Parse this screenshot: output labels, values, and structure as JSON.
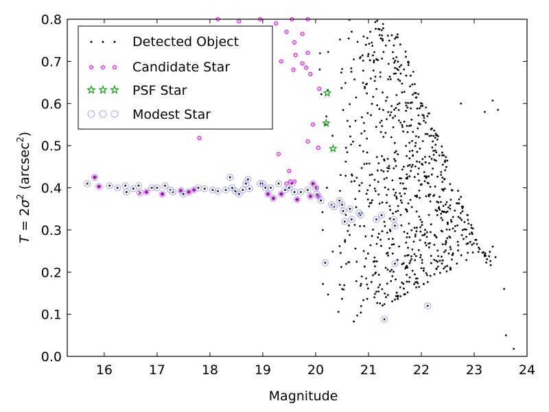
{
  "chart_data": {
    "type": "scatter",
    "xlabel": "Magnitude",
    "ylabel_parts": {
      "pre": "T",
      "eq": " = 2",
      "sigma": "σ",
      "sq": "2",
      "unit": " (arcsec",
      "unit_sq": "2",
      "close": ")"
    },
    "xlim": [
      15.3,
      24.0
    ],
    "ylim": [
      0.0,
      0.8
    ],
    "xticks": [
      "16",
      "17",
      "18",
      "19",
      "20",
      "21",
      "22",
      "23",
      "24"
    ],
    "yticks": [
      "0.0",
      "0.1",
      "0.2",
      "0.3",
      "0.4",
      "0.5",
      "0.6",
      "0.7",
      "0.8"
    ],
    "legend_position": "top-left",
    "colors": {
      "detected": "#000000",
      "candidate": "#ff00ff",
      "psf": "#00a000",
      "modest": "#aaaaff"
    },
    "series": [
      {
        "name": "Detected Object",
        "marker": "dot"
      },
      {
        "name": "Candidate Star",
        "marker": "small-magenta-circle"
      },
      {
        "name": "PSF Star",
        "marker": "green-star"
      },
      {
        "name": "Modest Star",
        "marker": "open-lavender-circle"
      }
    ],
    "psf_stars": [
      [
        20.22,
        0.625
      ],
      [
        20.2,
        0.553
      ],
      [
        20.33,
        0.493
      ]
    ],
    "candidate_stars": [
      [
        18.15,
        0.8
      ],
      [
        18.55,
        0.795
      ],
      [
        18.95,
        0.8
      ],
      [
        19.25,
        0.79
      ],
      [
        19.55,
        0.8
      ],
      [
        19.85,
        0.8
      ],
      [
        19.45,
        0.77
      ],
      [
        19.0,
        0.755
      ],
      [
        19.6,
        0.745
      ],
      [
        19.75,
        0.765
      ],
      [
        19.62,
        0.715
      ],
      [
        19.85,
        0.72
      ],
      [
        19.75,
        0.695
      ],
      [
        19.35,
        0.7
      ],
      [
        19.58,
        0.68
      ],
      [
        19.82,
        0.685
      ],
      [
        19.9,
        0.67
      ],
      [
        20.07,
        0.635
      ],
      [
        19.95,
        0.55
      ],
      [
        20.05,
        0.495
      ],
      [
        19.85,
        0.51
      ],
      [
        17.8,
        0.518
      ],
      [
        19.3,
        0.48
      ],
      [
        19.5,
        0.44
      ],
      [
        15.82,
        0.425
      ],
      [
        15.9,
        0.403
      ],
      [
        16.65,
        0.388
      ],
      [
        16.8,
        0.39
      ],
      [
        17.1,
        0.385
      ],
      [
        17.45,
        0.393
      ],
      [
        17.6,
        0.39
      ],
      [
        17.7,
        0.395
      ],
      [
        19.1,
        0.385
      ],
      [
        19.2,
        0.375
      ],
      [
        19.35,
        0.385
      ],
      [
        19.45,
        0.41
      ],
      [
        19.52,
        0.415
      ],
      [
        19.6,
        0.415
      ],
      [
        19.65,
        0.372
      ],
      [
        19.9,
        0.38
      ],
      [
        19.95,
        0.41
      ],
      [
        20.02,
        0.4
      ],
      [
        20.05,
        0.38
      ]
    ],
    "modest_stars": [
      [
        15.68,
        0.41
      ],
      [
        15.82,
        0.425
      ],
      [
        15.9,
        0.403
      ],
      [
        16.1,
        0.405
      ],
      [
        16.25,
        0.4
      ],
      [
        16.4,
        0.405
      ],
      [
        16.42,
        0.39
      ],
      [
        16.55,
        0.398
      ],
      [
        16.65,
        0.405
      ],
      [
        16.68,
        0.388
      ],
      [
        16.8,
        0.39
      ],
      [
        16.9,
        0.4
      ],
      [
        17.0,
        0.4
      ],
      [
        17.1,
        0.385
      ],
      [
        17.15,
        0.405
      ],
      [
        17.25,
        0.395
      ],
      [
        17.3,
        0.39
      ],
      [
        17.45,
        0.393
      ],
      [
        17.5,
        0.385
      ],
      [
        17.6,
        0.39
      ],
      [
        17.7,
        0.395
      ],
      [
        17.78,
        0.4
      ],
      [
        17.9,
        0.398
      ],
      [
        18.05,
        0.395
      ],
      [
        18.15,
        0.392
      ],
      [
        18.3,
        0.395
      ],
      [
        18.38,
        0.425
      ],
      [
        18.42,
        0.4
      ],
      [
        18.48,
        0.392
      ],
      [
        18.55,
        0.385
      ],
      [
        18.62,
        0.395
      ],
      [
        18.68,
        0.41
      ],
      [
        18.72,
        0.42
      ],
      [
        18.75,
        0.398
      ],
      [
        18.95,
        0.41
      ],
      [
        19.0,
        0.41
      ],
      [
        19.05,
        0.4
      ],
      [
        19.1,
        0.385
      ],
      [
        19.15,
        0.4
      ],
      [
        19.2,
        0.375
      ],
      [
        19.3,
        0.41
      ],
      [
        19.35,
        0.385
      ],
      [
        19.42,
        0.395
      ],
      [
        19.5,
        0.4
      ],
      [
        19.55,
        0.41
      ],
      [
        19.6,
        0.39
      ],
      [
        19.65,
        0.372
      ],
      [
        19.72,
        0.39
      ],
      [
        19.85,
        0.395
      ],
      [
        19.9,
        0.38
      ],
      [
        19.95,
        0.41
      ],
      [
        20.0,
        0.4
      ],
      [
        20.02,
        0.385
      ],
      [
        20.05,
        0.38
      ],
      [
        20.1,
        0.37
      ],
      [
        20.3,
        0.36
      ],
      [
        20.35,
        0.355
      ],
      [
        20.45,
        0.37
      ],
      [
        20.5,
        0.36
      ],
      [
        20.52,
        0.345
      ],
      [
        20.55,
        0.32
      ],
      [
        20.65,
        0.35
      ],
      [
        20.68,
        0.325
      ],
      [
        20.82,
        0.34
      ],
      [
        20.85,
        0.335
      ],
      [
        21.15,
        0.325
      ],
      [
        21.25,
        0.335
      ],
      [
        21.48,
        0.325
      ],
      [
        21.5,
        0.31
      ],
      [
        20.18,
        0.222
      ],
      [
        21.5,
        0.22
      ],
      [
        22.12,
        0.12
      ],
      [
        21.3,
        0.088
      ]
    ]
  }
}
